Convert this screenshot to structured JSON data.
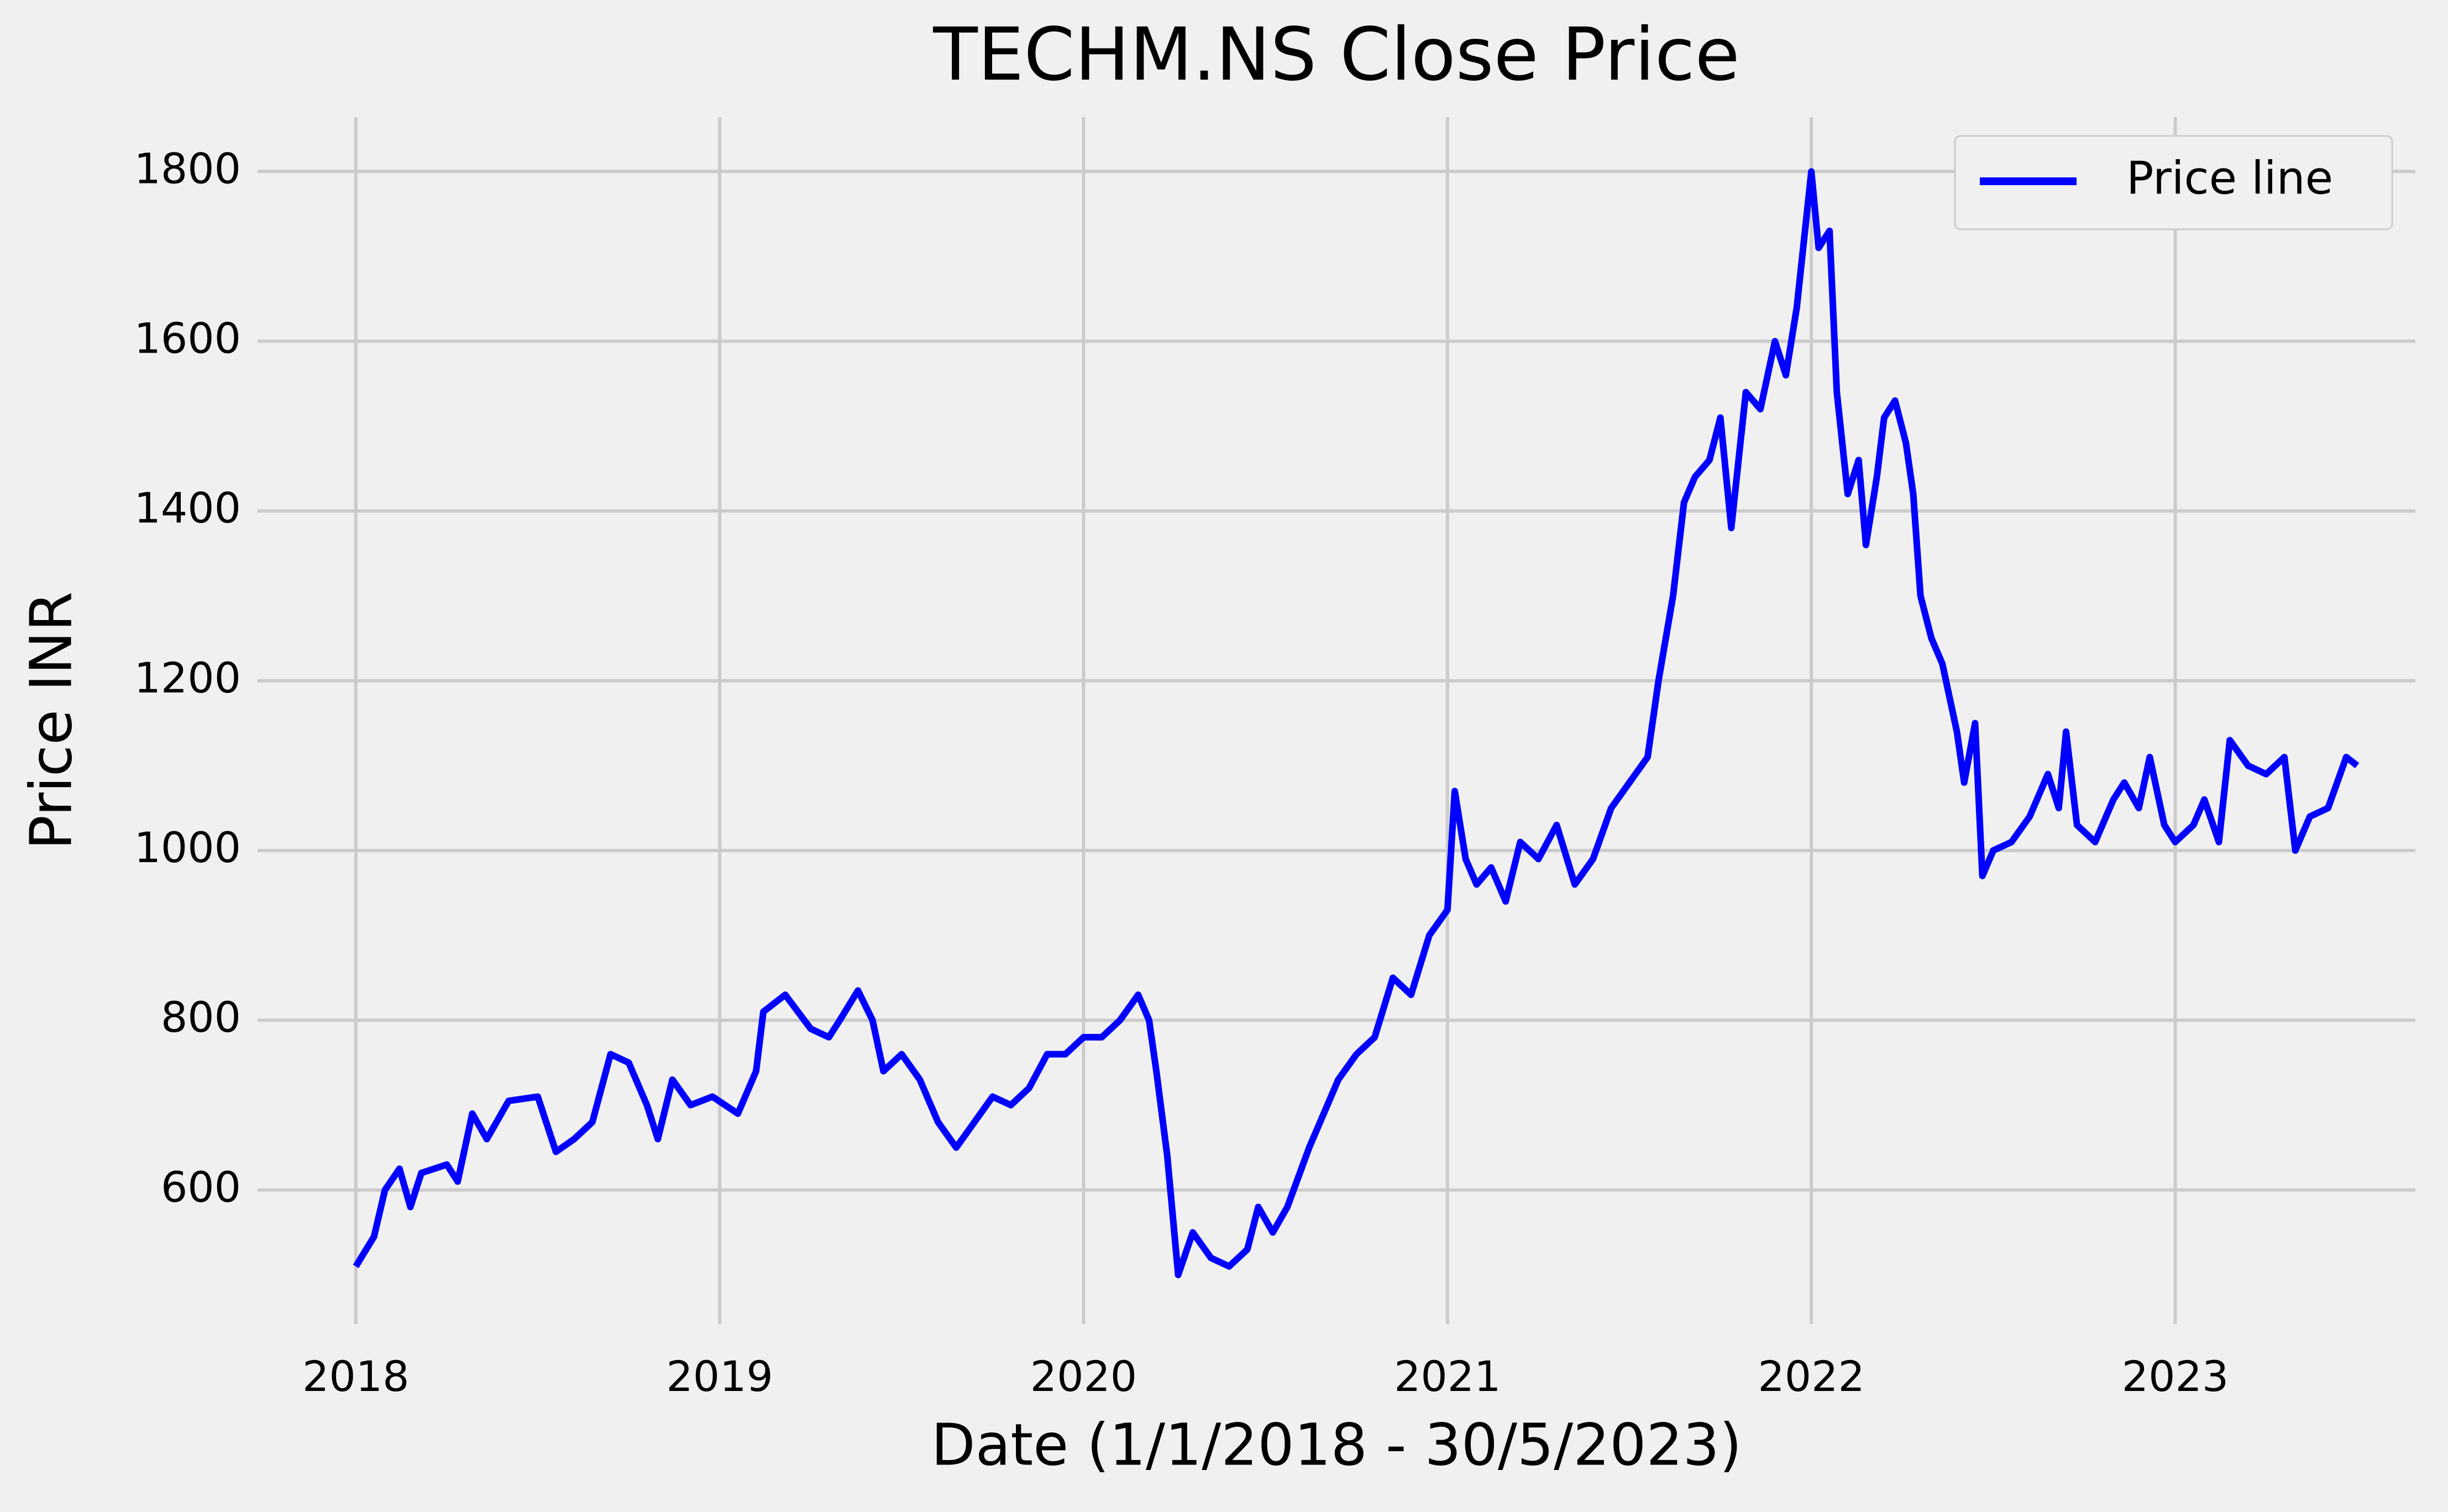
{
  "chart_data": {
    "type": "line",
    "title": "TECHM.NS Close Price",
    "xlabel": "Date (1/1/2018 - 30/5/2023)",
    "ylabel": "Price INR",
    "x": [
      2018.0,
      2018.05,
      2018.08,
      2018.12,
      2018.15,
      2018.18,
      2018.25,
      2018.28,
      2018.32,
      2018.36,
      2018.42,
      2018.5,
      2018.55,
      2018.6,
      2018.65,
      2018.7,
      2018.75,
      2018.8,
      2018.83,
      2018.87,
      2018.92,
      2018.98,
      2019.05,
      2019.1,
      2019.12,
      2019.18,
      2019.25,
      2019.3,
      2019.33,
      2019.38,
      2019.42,
      2019.45,
      2019.5,
      2019.55,
      2019.6,
      2019.65,
      2019.7,
      2019.75,
      2019.8,
      2019.85,
      2019.9,
      2019.95,
      2020.0,
      2020.05,
      2020.1,
      2020.15,
      2020.18,
      2020.2,
      2020.23,
      2020.26,
      2020.3,
      2020.35,
      2020.4,
      2020.45,
      2020.48,
      2020.52,
      2020.56,
      2020.62,
      2020.66,
      2020.7,
      2020.75,
      2020.8,
      2020.85,
      2020.9,
      2020.95,
      2021.0,
      2021.02,
      2021.05,
      2021.08,
      2021.12,
      2021.16,
      2021.2,
      2021.25,
      2021.3,
      2021.35,
      2021.4,
      2021.45,
      2021.5,
      2021.55,
      2021.58,
      2021.62,
      2021.65,
      2021.68,
      2021.72,
      2021.75,
      2021.78,
      2021.82,
      2021.86,
      2021.9,
      2021.93,
      2021.96,
      2022.0,
      2022.02,
      2022.05,
      2022.07,
      2022.1,
      2022.13,
      2022.15,
      2022.18,
      2022.2,
      2022.23,
      2022.26,
      2022.28,
      2022.3,
      2022.33,
      2022.36,
      2022.4,
      2022.42,
      2022.45,
      2022.47,
      2022.5,
      2022.55,
      2022.6,
      2022.65,
      2022.68,
      2022.7,
      2022.73,
      2022.78,
      2022.83,
      2022.86,
      2022.9,
      2022.93,
      2022.97,
      2023.0,
      2023.05,
      2023.08,
      2023.12,
      2023.15,
      2023.2,
      2023.25,
      2023.3,
      2023.33,
      2023.37,
      2023.42,
      2023.47,
      2023.5
    ],
    "series": [
      {
        "name": "Price line",
        "color": "#0000ff",
        "values": [
          510,
          545,
          600,
          625,
          580,
          620,
          630,
          610,
          690,
          660,
          705,
          710,
          645,
          660,
          680,
          760,
          750,
          700,
          660,
          730,
          700,
          710,
          690,
          740,
          810,
          830,
          790,
          780,
          800,
          835,
          800,
          740,
          760,
          730,
          680,
          650,
          680,
          710,
          700,
          720,
          760,
          760,
          780,
          780,
          800,
          830,
          800,
          740,
          640,
          500,
          550,
          520,
          510,
          530,
          580,
          550,
          580,
          650,
          690,
          730,
          760,
          780,
          850,
          830,
          900,
          930,
          1070,
          990,
          960,
          980,
          940,
          1010,
          990,
          1030,
          960,
          990,
          1050,
          1080,
          1110,
          1200,
          1300,
          1410,
          1440,
          1460,
          1510,
          1380,
          1540,
          1520,
          1600,
          1560,
          1640,
          1800,
          1710,
          1730,
          1540,
          1420,
          1460,
          1360,
          1440,
          1510,
          1530,
          1480,
          1420,
          1300,
          1250,
          1220,
          1140,
          1080,
          1150,
          970,
          1000,
          1010,
          1040,
          1090,
          1050,
          1140,
          1030,
          1010,
          1060,
          1080,
          1050,
          1110,
          1030,
          1010,
          1030,
          1060,
          1010,
          1130,
          1100,
          1090,
          1110,
          1000,
          1040,
          1050,
          1110,
          1100
        ]
      }
    ],
    "xlim": [
      2017.73,
      2023.66
    ],
    "xticks": [
      2018,
      2019,
      2020,
      2021,
      2022,
      2023
    ],
    "ylim": [
      442,
      1864
    ],
    "yticks": [
      600,
      800,
      1000,
      1200,
      1400,
      1600,
      1800
    ],
    "grid": true,
    "legend": "upper right"
  }
}
